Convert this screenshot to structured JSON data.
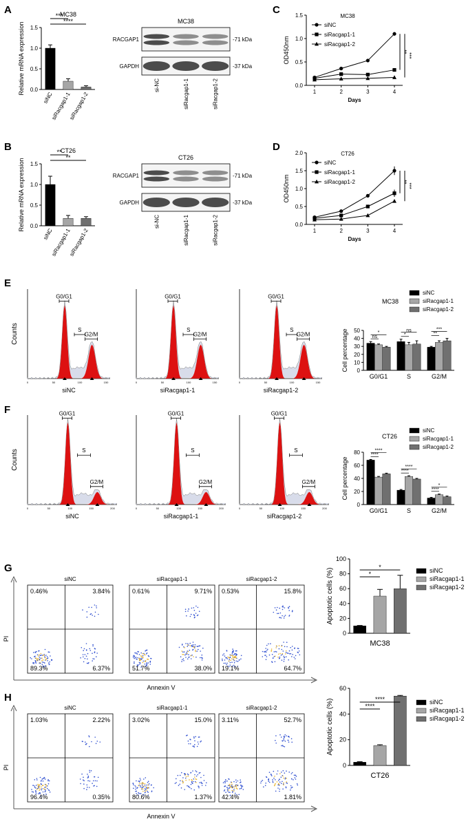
{
  "panels": {
    "A": "A",
    "B": "B",
    "C": "C",
    "D": "D",
    "E": "E",
    "F": "F",
    "G": "G",
    "H": "H"
  },
  "colors": {
    "siNC": "#000000",
    "si1": "#a6a6a6",
    "si2": "#707070",
    "red": "#dd1111",
    "blot": "#3a3a3a",
    "flowLow": "#3050d0",
    "flowHigh": "#e8b020"
  },
  "legend_labels": [
    "siNC",
    "siRacgap1-1",
    "siRacgap1-2"
  ],
  "icons": {
    "line_markers": [
      "circle-marker-icon",
      "square-marker-icon",
      "triangle-marker-icon"
    ],
    "peak_markers": "triangle-up-icon"
  },
  "panel_A": {
    "chart_data": {
      "type": "bar",
      "title": "MC38",
      "ylabel": "Relative mRNA expression",
      "ylim": [
        0,
        1.5
      ],
      "yticks": [
        "0.0",
        "0.5",
        "1.0",
        "1.5"
      ],
      "categories": [
        "siNC",
        "siRacgap1-1",
        "siRacgap1-2"
      ],
      "values": [
        1.0,
        0.2,
        0.06
      ],
      "errors": [
        0.08,
        0.06,
        0.03
      ],
      "significance": [
        {
          "from": 0,
          "to": 1,
          "label": "***"
        },
        {
          "from": 0,
          "to": 2,
          "label": "****"
        }
      ]
    }
  },
  "blot_A": {
    "title": "MC38",
    "row_labels": [
      "RACGAP1",
      "GAPDH"
    ],
    "sizes": [
      "-71 kDa",
      "-37 kDa"
    ],
    "lanes": [
      "si-NC",
      "siRacgap1-1",
      "siRacgap1-2"
    ]
  },
  "panel_B": {
    "chart_data": {
      "type": "bar",
      "title": "CT26",
      "ylabel": "Relative mRNA expression",
      "ylim": [
        0,
        1.5
      ],
      "yticks": [
        "0.0",
        "0.5",
        "1.0",
        "1.5"
      ],
      "categories": [
        "siNC",
        "siRacgap1-1",
        "siRacgap1-2"
      ],
      "values": [
        1.0,
        0.18,
        0.18
      ],
      "errors": [
        0.2,
        0.07,
        0.04
      ],
      "significance": [
        {
          "from": 0,
          "to": 1,
          "label": "**"
        },
        {
          "from": 0,
          "to": 2,
          "label": "**"
        }
      ]
    }
  },
  "blot_B": {
    "title": "CT26",
    "row_labels": [
      "RACGAP1",
      "GAPDH"
    ],
    "sizes": [
      "-71 kDa",
      "-37 kDa"
    ],
    "lanes": [
      "si-NC",
      "siRacgap1-1",
      "siRacgap1-2"
    ]
  },
  "panel_C": {
    "chart_data": {
      "type": "line",
      "title": "MC38",
      "ylabel": "OD450nm",
      "xlabel": "Days",
      "x": [
        1,
        2,
        3,
        4
      ],
      "ylim": [
        0,
        1.5
      ],
      "yticks": [
        "0.0",
        "0.5",
        "1.0",
        "1.5"
      ],
      "series": [
        {
          "name": "siNC",
          "values": [
            0.17,
            0.36,
            0.53,
            1.1
          ],
          "errors": [
            0.02,
            0.02,
            0.03,
            0.04
          ]
        },
        {
          "name": "siRacgap1-1",
          "values": [
            0.15,
            0.24,
            0.23,
            0.33
          ],
          "errors": [
            0.01,
            0.02,
            0.02,
            0.02
          ]
        },
        {
          "name": "siRacgap1-2",
          "values": [
            0.12,
            0.14,
            0.15,
            0.17
          ],
          "errors": [
            0.01,
            0.01,
            0.01,
            0.01
          ]
        }
      ],
      "significance": [
        "**",
        "***"
      ]
    }
  },
  "panel_D": {
    "chart_data": {
      "type": "line",
      "title": "CT26",
      "ylabel": "OD450nm",
      "xlabel": "Days",
      "x": [
        1,
        2,
        3,
        4
      ],
      "ylim": [
        0,
        2.0
      ],
      "yticks": [
        "0.0",
        "0.5",
        "1.0",
        "1.5",
        "2.0"
      ],
      "series": [
        {
          "name": "siNC",
          "values": [
            0.2,
            0.37,
            0.8,
            1.5
          ],
          "errors": [
            0.03,
            0.03,
            0.04,
            0.12
          ]
        },
        {
          "name": "siRacgap1-1",
          "values": [
            0.17,
            0.25,
            0.5,
            0.87
          ],
          "errors": [
            0.02,
            0.02,
            0.04,
            0.1
          ]
        },
        {
          "name": "siRacgap1-2",
          "values": [
            0.13,
            0.15,
            0.25,
            0.65
          ],
          "errors": [
            0.01,
            0.02,
            0.02,
            0.03
          ]
        }
      ],
      "significance": [
        "**",
        "***"
      ]
    }
  },
  "histo_E": {
    "ylabel": "Counts",
    "xticks": [
      "0",
      "50",
      "100",
      "150"
    ],
    "xticks_right": [
      "0",
      "50",
      "100",
      "150",
      "200"
    ],
    "gates": [
      "G0/G1",
      "S",
      "G2/M"
    ],
    "labels": [
      "siNC",
      "siRacgap1-1",
      "siRacgap1-2"
    ]
  },
  "panel_E": {
    "chart_data": {
      "type": "bar",
      "title": "MC38",
      "ylabel": "Cell percentage",
      "ylim": [
        0,
        50
      ],
      "yticks": [
        "0",
        "10",
        "20",
        "30",
        "40",
        "50"
      ],
      "categories": [
        "G0/G1",
        "S",
        "G2/M"
      ],
      "series": [
        {
          "name": "siNC",
          "values": [
            34,
            36,
            29
          ],
          "errors": [
            2,
            3,
            1
          ]
        },
        {
          "name": "siRacgap1-1",
          "values": [
            32,
            32,
            35
          ],
          "errors": [
            1,
            3,
            2
          ]
        },
        {
          "name": "siRacgap1-2",
          "values": [
            29,
            33,
            37
          ],
          "errors": [
            1,
            4,
            3
          ]
        }
      ],
      "significance": [
        [
          "*",
          "ns"
        ],
        [
          "ns",
          "*"
        ],
        [
          "***",
          "**"
        ]
      ]
    }
  },
  "histo_F": {
    "ylabel": "Counts",
    "xticks": [
      "0",
      "50",
      "100",
      "150",
      "200"
    ],
    "gates": [
      "G0/G1",
      "S",
      "G2/M"
    ],
    "labels": [
      "siNC",
      "siRacgap1-1",
      "siRacgap1-2"
    ]
  },
  "panel_F": {
    "chart_data": {
      "type": "bar",
      "title": "CT26",
      "ylabel": "Cell percentage",
      "ylim": [
        0,
        80
      ],
      "yticks": [
        "0",
        "20",
        "40",
        "60",
        "80"
      ],
      "categories": [
        "G0/G1",
        "S",
        "G2/M"
      ],
      "series": [
        {
          "name": "siNC",
          "values": [
            68,
            22,
            10
          ],
          "errors": [
            1,
            1,
            1
          ]
        },
        {
          "name": "siRacgap1-1",
          "values": [
            42,
            43,
            15
          ],
          "errors": [
            1,
            1,
            1
          ]
        },
        {
          "name": "siRacgap1-2",
          "values": [
            47,
            39,
            12
          ],
          "errors": [
            1,
            1,
            1
          ]
        }
      ],
      "significance": [
        [
          "****",
          "****"
        ],
        [
          "****",
          "****"
        ],
        [
          "*",
          "****"
        ]
      ]
    }
  },
  "flow_G": {
    "titles": [
      "siNC",
      "siRacgap1-1",
      "siRacgap1-2"
    ],
    "xlabel": "Annexin V",
    "ylabel": "PI",
    "quadrants": [
      [
        "0.46%",
        "3.84%",
        "89.3%",
        "6.37%"
      ],
      [
        "0.61%",
        "9.71%",
        "51.7%",
        "38.0%"
      ],
      [
        "0.53%",
        "15.8%",
        "19.1%",
        "64.7%"
      ]
    ]
  },
  "panel_G": {
    "chart_data": {
      "type": "bar",
      "xlabel": "MC38",
      "ylabel": "Apoptotic cells (%)",
      "ylim": [
        0,
        100
      ],
      "yticks": [
        "0",
        "20",
        "40",
        "60",
        "80",
        "100"
      ],
      "categories": [
        "siNC",
        "siRacgap1-1",
        "siRacgap1-2"
      ],
      "values": [
        10,
        50,
        60
      ],
      "errors": [
        0.5,
        9,
        18
      ],
      "significance": [
        {
          "from": 0,
          "to": 1,
          "label": "*"
        },
        {
          "from": 0,
          "to": 2,
          "label": "*"
        }
      ]
    }
  },
  "flow_H": {
    "titles": [
      "siNC",
      "siRacgap1-1",
      "siRacgap1-2"
    ],
    "xlabel": "Annexin V",
    "ylabel": "PI",
    "quadrants": [
      [
        "1.03%",
        "2.22%",
        "96.4%",
        "0.35%"
      ],
      [
        "3.02%",
        "15.0%",
        "80.6%",
        "1.37%"
      ],
      [
        "3.11%",
        "52.7%",
        "42.4%",
        "1.81%"
      ]
    ]
  },
  "panel_H": {
    "chart_data": {
      "type": "bar",
      "xlabel": "CT26",
      "ylabel": "Apoptotic cells (%)",
      "ylim": [
        0,
        60
      ],
      "yticks": [
        "0",
        "20",
        "40",
        "60"
      ],
      "categories": [
        "siNC",
        "siRacgap1-1",
        "siRacgap1-2"
      ],
      "values": [
        2.5,
        15.5,
        54
      ],
      "errors": [
        0.4,
        0.6,
        0.5
      ],
      "significance": [
        {
          "from": 0,
          "to": 1,
          "label": "****"
        },
        {
          "from": 0,
          "to": 2,
          "label": "****"
        }
      ]
    }
  }
}
